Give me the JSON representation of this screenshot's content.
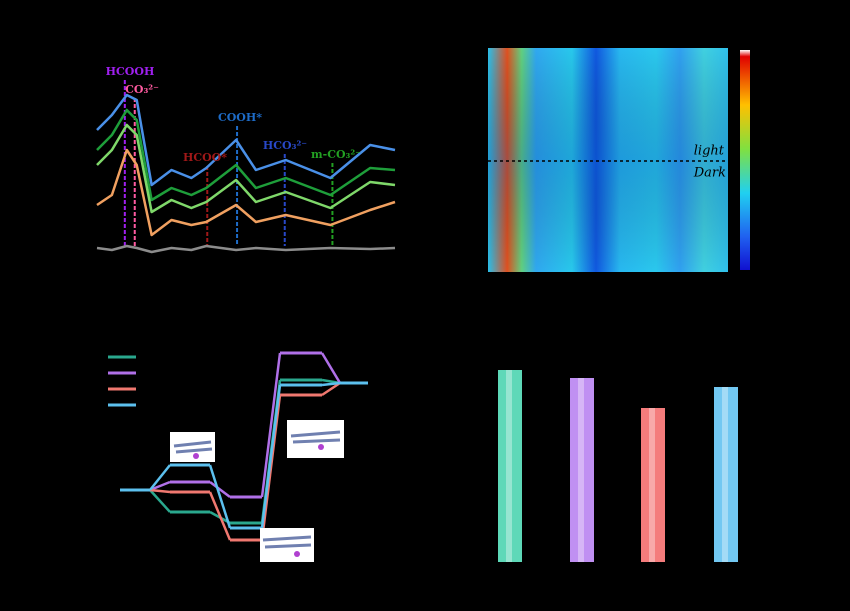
{
  "chart_data": [
    {
      "type": "line",
      "xlim": [
        0,
        300
      ],
      "ylim": [
        0,
        200
      ],
      "x": [
        0,
        15,
        30,
        40,
        55,
        75,
        95,
        110,
        140,
        160,
        190,
        235,
        275,
        300
      ],
      "series": [
        {
          "color": "#4a90e8",
          "values": [
            130,
            145,
            165,
            160,
            75,
            90,
            82,
            92,
            120,
            90,
            100,
            82,
            115,
            110
          ]
        },
        {
          "color": "#1e9e3a",
          "values": [
            110,
            125,
            150,
            140,
            60,
            72,
            65,
            72,
            95,
            72,
            82,
            65,
            92,
            90
          ]
        },
        {
          "color": "#7fd86a",
          "values": [
            95,
            110,
            135,
            125,
            48,
            60,
            52,
            58,
            80,
            58,
            68,
            52,
            78,
            75
          ]
        },
        {
          "color": "#f0a060",
          "values": [
            55,
            65,
            110,
            95,
            25,
            40,
            35,
            38,
            55,
            38,
            45,
            35,
            50,
            58
          ]
        },
        {
          "color": "#8c8c8c",
          "values": [
            12,
            10,
            14,
            12,
            8,
            12,
            10,
            14,
            10,
            12,
            10,
            12,
            11,
            12
          ]
        }
      ],
      "annotations": [
        {
          "text": "HCOOH",
          "color": "#a020f0",
          "x": 28
        },
        {
          "text": "CO₃²⁻",
          "color": "#ff5aa0",
          "x": 38
        },
        {
          "text": "HCOO*",
          "color": "#a01818",
          "x": 111
        },
        {
          "text": "COOH*",
          "color": "#1e6cc8",
          "x": 141
        },
        {
          "text": "HCO₃²⁻",
          "color": "#2848c8",
          "x": 189
        },
        {
          "text": "m-CO₃²⁻",
          "color": "#22a022",
          "x": 237
        }
      ]
    },
    {
      "type": "heatmap",
      "labels": [
        "light",
        "Dark"
      ]
    },
    {
      "type": "energy",
      "ylim": [
        -1,
        1.7
      ],
      "series": [
        {
          "color": "#2aa88e",
          "values": [
            0,
            -0.22,
            -0.33,
            1.1,
            1.07
          ]
        },
        {
          "color": "#b070e8",
          "values": [
            0,
            0.08,
            -0.07,
            1.37,
            1.07
          ]
        },
        {
          "color": "#f07870",
          "values": [
            0,
            -0.02,
            -0.5,
            0.95,
            1.07
          ]
        },
        {
          "color": "#5cc0ee",
          "values": [
            0,
            0.25,
            -0.38,
            1.05,
            1.07
          ]
        }
      ]
    },
    {
      "type": "bar",
      "ylim": [
        0,
        222
      ],
      "values": [
        192,
        184,
        154,
        175
      ],
      "colors": [
        "#5ed8b8",
        "#c090f2",
        "#f47c7c",
        "#72c8f2"
      ]
    }
  ]
}
